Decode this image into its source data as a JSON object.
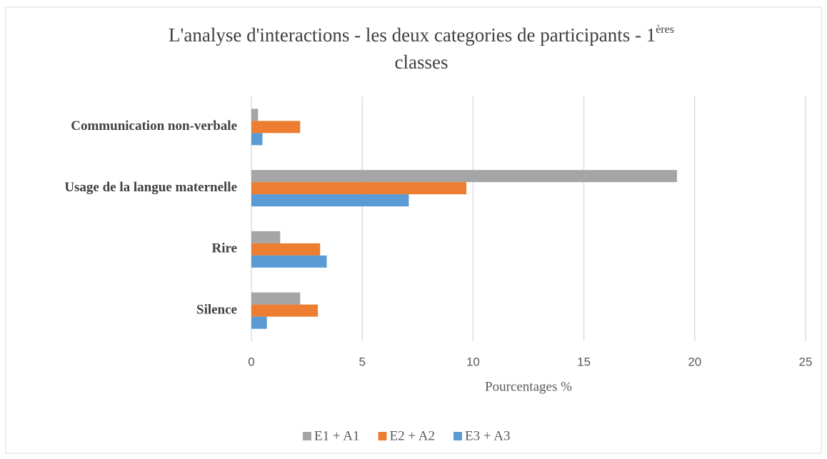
{
  "chart_data": {
    "type": "hbar",
    "title": [
      "L'analyse d'interactions - les deux categories de participants - 1",
      "ères",
      "classes"
    ],
    "categories": [
      "Communication non-verbale",
      "Usage de la langue maternelle",
      "Rire",
      "Silence"
    ],
    "series": [
      {
        "name": "E1 + A1",
        "color": "#a5a5a5",
        "values": [
          0.3,
          19.2,
          1.3,
          2.2
        ]
      },
      {
        "name": "E2 + A2",
        "color": "#ed7d31",
        "values": [
          2.2,
          9.7,
          3.1,
          3.0
        ]
      },
      {
        "name": "E3 + A3",
        "color": "#5b9bd5",
        "values": [
          0.5,
          7.1,
          3.4,
          0.7
        ]
      }
    ],
    "xlabel": "Pourcentages %",
    "xlim": [
      0,
      25
    ],
    "xticks": [
      0,
      5,
      10,
      15,
      20,
      25
    ],
    "grid": true,
    "legend": "bottom"
  }
}
